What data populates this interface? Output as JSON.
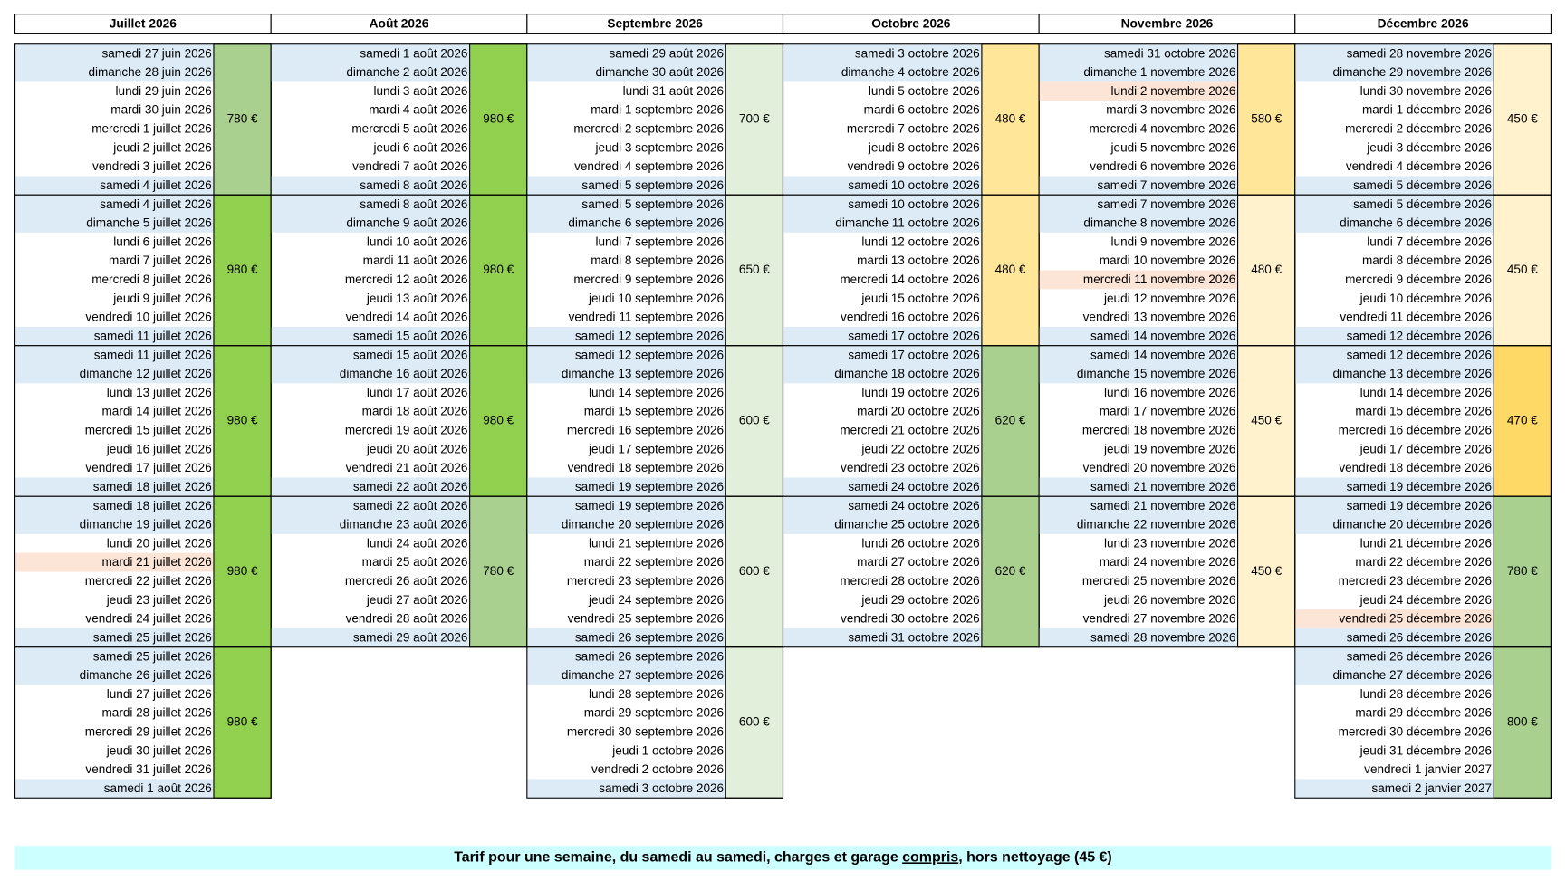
{
  "months": [
    {
      "name": "Juillet 2026",
      "weeks": [
        {
          "days": [
            "samedi 27 juin 2026",
            "dimanche 28 juin 2026",
            "lundi 29 juin 2026",
            "mardi 30 juin 2026",
            "mercredi 1 juillet 2026",
            "jeudi 2 juillet 2026",
            "vendredi 3 juillet 2026",
            "samedi 4 juillet 2026"
          ],
          "price": "780 €",
          "color": "#a9d08e"
        },
        {
          "days": [
            "samedi 4 juillet 2026",
            "dimanche 5 juillet 2026",
            "lundi 6 juillet 2026",
            "mardi 7 juillet 2026",
            "mercredi 8 juillet 2026",
            "jeudi 9 juillet 2026",
            "vendredi 10 juillet 2026",
            "samedi 11 juillet 2026"
          ],
          "price": "980 €",
          "color": "#92d050"
        },
        {
          "days": [
            "samedi 11 juillet 2026",
            "dimanche 12 juillet 2026",
            "lundi 13 juillet 2026",
            "mardi 14 juillet 2026",
            "mercredi 15 juillet 2026",
            "jeudi 16 juillet 2026",
            "vendredi 17 juillet 2026",
            "samedi 18 juillet 2026"
          ],
          "price": "980 €",
          "color": "#92d050"
        },
        {
          "days": [
            "samedi 18 juillet 2026",
            "dimanche 19 juillet 2026",
            "lundi 20 juillet 2026",
            "mardi 21 juillet 2026",
            "mercredi 22 juillet 2026",
            "jeudi 23 juillet 2026",
            "vendredi 24 juillet 2026",
            "samedi 25 juillet 2026"
          ],
          "price": "980 €",
          "color": "#92d050",
          "highlight": [
            3
          ]
        },
        {
          "days": [
            "samedi 25 juillet 2026",
            "dimanche 26 juillet 2026",
            "lundi 27 juillet 2026",
            "mardi 28 juillet 2026",
            "mercredi 29 juillet 2026",
            "jeudi 30 juillet 2026",
            "vendredi 31 juillet 2026",
            "samedi 1 août 2026"
          ],
          "price": "980 €",
          "color": "#92d050"
        }
      ]
    },
    {
      "name": "Août 2026",
      "weeks": [
        {
          "days": [
            "samedi 1 août 2026",
            "dimanche 2 août 2026",
            "lundi 3 août 2026",
            "mardi 4 août 2026",
            "mercredi 5 août 2026",
            "jeudi 6 août 2026",
            "vendredi 7 août 2026",
            "samedi 8 août 2026"
          ],
          "price": "980 €",
          "color": "#92d050"
        },
        {
          "days": [
            "samedi 8 août 2026",
            "dimanche 9 août 2026",
            "lundi 10 août 2026",
            "mardi 11 août 2026",
            "mercredi 12 août 2026",
            "jeudi 13 août 2026",
            "vendredi 14 août 2026",
            "samedi 15 août 2026"
          ],
          "price": "980 €",
          "color": "#92d050"
        },
        {
          "days": [
            "samedi 15 août 2026",
            "dimanche 16 août 2026",
            "lundi 17 août 2026",
            "mardi 18 août 2026",
            "mercredi 19 août 2026",
            "jeudi 20 août 2026",
            "vendredi 21 août 2026",
            "samedi 22 août 2026"
          ],
          "price": "980 €",
          "color": "#92d050"
        },
        {
          "days": [
            "samedi 22 août 2026",
            "dimanche 23 août 2026",
            "lundi 24 août 2026",
            "mardi 25 août 2026",
            "mercredi 26 août 2026",
            "jeudi 27 août 2026",
            "vendredi 28 août 2026",
            "samedi 29 août 2026"
          ],
          "price": "780 €",
          "color": "#a9d08e"
        }
      ]
    },
    {
      "name": "Septembre 2026",
      "weeks": [
        {
          "days": [
            "samedi 29 août 2026",
            "dimanche 30 août 2026",
            "lundi 31 août 2026",
            "mardi 1 septembre 2026",
            "mercredi 2 septembre 2026",
            "jeudi 3 septembre 2026",
            "vendredi 4 septembre 2026",
            "samedi 5 septembre 2026"
          ],
          "price": "700 €",
          "color": "#e2efda"
        },
        {
          "days": [
            "samedi 5 septembre 2026",
            "dimanche 6 septembre 2026",
            "lundi 7 septembre 2026",
            "mardi 8 septembre 2026",
            "mercredi 9 septembre 2026",
            "jeudi 10 septembre 2026",
            "vendredi 11 septembre 2026",
            "samedi 12 septembre 2026"
          ],
          "price": "650 €",
          "color": "#e2efda"
        },
        {
          "days": [
            "samedi 12 septembre 2026",
            "dimanche 13 septembre 2026",
            "lundi 14 septembre 2026",
            "mardi 15 septembre 2026",
            "mercredi 16 septembre 2026",
            "jeudi 17 septembre 2026",
            "vendredi 18 septembre 2026",
            "samedi 19 septembre 2026"
          ],
          "price": "600 €",
          "color": "#e2efda"
        },
        {
          "days": [
            "samedi 19 septembre 2026",
            "dimanche 20 septembre 2026",
            "lundi 21 septembre 2026",
            "mardi 22 septembre 2026",
            "mercredi 23 septembre 2026",
            "jeudi 24 septembre 2026",
            "vendredi 25 septembre 2026",
            "samedi 26 septembre 2026"
          ],
          "price": "600 €",
          "color": "#e2efda"
        },
        {
          "days": [
            "samedi 26 septembre 2026",
            "dimanche 27 septembre 2026",
            "lundi 28 septembre 2026",
            "mardi 29 septembre 2026",
            "mercredi 30 septembre 2026",
            "jeudi 1 octobre 2026",
            "vendredi 2 octobre 2026",
            "samedi 3 octobre 2026"
          ],
          "price": "600 €",
          "color": "#e2efda"
        }
      ]
    },
    {
      "name": "Octobre 2026",
      "weeks": [
        {
          "days": [
            "samedi 3 octobre 2026",
            "dimanche 4 octobre 2026",
            "lundi 5 octobre 2026",
            "mardi 6 octobre 2026",
            "mercredi 7 octobre 2026",
            "jeudi 8 octobre 2026",
            "vendredi 9 octobre 2026",
            "samedi 10 octobre 2026"
          ],
          "price": "480 €",
          "color": "#ffe699"
        },
        {
          "days": [
            "samedi 10 octobre 2026",
            "dimanche 11 octobre 2026",
            "lundi 12 octobre 2026",
            "mardi 13 octobre 2026",
            "mercredi 14 octobre 2026",
            "jeudi 15 octobre 2026",
            "vendredi 16 octobre 2026",
            "samedi 17 octobre 2026"
          ],
          "price": "480 €",
          "color": "#ffe699"
        },
        {
          "days": [
            "samedi 17 octobre 2026",
            "dimanche 18 octobre 2026",
            "lundi 19 octobre 2026",
            "mardi 20 octobre 2026",
            "mercredi 21 octobre 2026",
            "jeudi 22 octobre 2026",
            "vendredi 23 octobre 2026",
            "samedi 24 octobre 2026"
          ],
          "price": "620 €",
          "color": "#a9d08e"
        },
        {
          "days": [
            "samedi 24 octobre 2026",
            "dimanche 25 octobre 2026",
            "lundi 26 octobre 2026",
            "mardi 27 octobre 2026",
            "mercredi 28 octobre 2026",
            "jeudi 29 octobre 2026",
            "vendredi 30 octobre 2026",
            "samedi 31 octobre 2026"
          ],
          "price": "620 €",
          "color": "#a9d08e"
        }
      ]
    },
    {
      "name": "Novembre 2026",
      "weeks": [
        {
          "days": [
            "samedi 31 octobre 2026",
            "dimanche 1 novembre 2026",
            "lundi 2 novembre 2026",
            "mardi 3 novembre 2026",
            "mercredi 4 novembre 2026",
            "jeudi 5 novembre 2026",
            "vendredi 6 novembre 2026",
            "samedi 7 novembre 2026"
          ],
          "price": "580 €",
          "color": "#ffe699",
          "highlight": [
            2
          ]
        },
        {
          "days": [
            "samedi 7 novembre 2026",
            "dimanche 8 novembre 2026",
            "lundi 9 novembre 2026",
            "mardi 10 novembre 2026",
            "mercredi 11 novembre 2026",
            "jeudi 12 novembre 2026",
            "vendredi 13 novembre 2026",
            "samedi 14 novembre 2026"
          ],
          "price": "480 €",
          "color": "#fff2cc",
          "highlight": [
            4
          ]
        },
        {
          "days": [
            "samedi 14 novembre 2026",
            "dimanche 15 novembre 2026",
            "lundi 16 novembre 2026",
            "mardi 17 novembre 2026",
            "mercredi 18 novembre 2026",
            "jeudi 19 novembre 2026",
            "vendredi 20 novembre 2026",
            "samedi 21 novembre 2026"
          ],
          "price": "450 €",
          "color": "#fff2cc"
        },
        {
          "days": [
            "samedi 21 novembre 2026",
            "dimanche 22 novembre 2026",
            "lundi 23 novembre 2026",
            "mardi 24 novembre 2026",
            "mercredi 25 novembre 2026",
            "jeudi 26 novembre 2026",
            "vendredi 27 novembre 2026",
            "samedi 28 novembre 2026"
          ],
          "price": "450 €",
          "color": "#fff2cc"
        }
      ]
    },
    {
      "name": "Décembre 2026",
      "weeks": [
        {
          "days": [
            "samedi 28 novembre 2026",
            "dimanche 29 novembre 2026",
            "lundi 30 novembre 2026",
            "mardi 1 décembre 2026",
            "mercredi 2 décembre 2026",
            "jeudi 3 décembre 2026",
            "vendredi 4 décembre 2026",
            "samedi 5 décembre 2026"
          ],
          "price": "450 €",
          "color": "#fff2cc"
        },
        {
          "days": [
            "samedi 5 décembre 2026",
            "dimanche 6 décembre 2026",
            "lundi 7 décembre 2026",
            "mardi 8 décembre 2026",
            "mercredi 9 décembre 2026",
            "jeudi 10 décembre 2026",
            "vendredi 11 décembre 2026",
            "samedi 12 décembre 2026"
          ],
          "price": "450 €",
          "color": "#fff2cc"
        },
        {
          "days": [
            "samedi 12 décembre 2026",
            "dimanche 13 décembre 2026",
            "lundi 14 décembre 2026",
            "mardi 15 décembre 2026",
            "mercredi 16 décembre 2026",
            "jeudi 17 décembre 2026",
            "vendredi 18 décembre 2026",
            "samedi 19 décembre 2026"
          ],
          "price": "470 €",
          "color": "#ffd966"
        },
        {
          "days": [
            "samedi 19 décembre 2026",
            "dimanche 20 décembre 2026",
            "lundi 21 décembre 2026",
            "mardi 22 décembre 2026",
            "mercredi 23 décembre 2026",
            "jeudi 24 décembre 2026",
            "vendredi 25 décembre 2026",
            "samedi 26 décembre 2026"
          ],
          "price": "780 €",
          "color": "#a9d08e",
          "highlight": [
            6
          ]
        },
        {
          "days": [
            "samedi 26 décembre 2026",
            "dimanche 27 décembre 2026",
            "lundi 28 décembre 2026",
            "mardi 29 décembre 2026",
            "mercredi 30 décembre 2026",
            "jeudi 31 décembre 2026",
            "vendredi 1 janvier 2027",
            "samedi 2 janvier 2027"
          ],
          "price": "800 €",
          "color": "#a9d08e"
        }
      ]
    }
  ],
  "footer": {
    "parts": [
      "Tarif pour une semaine, du samedi au samedi, charges et garage ",
      "compris",
      ", hors nettoyage (45 €)"
    ]
  }
}
